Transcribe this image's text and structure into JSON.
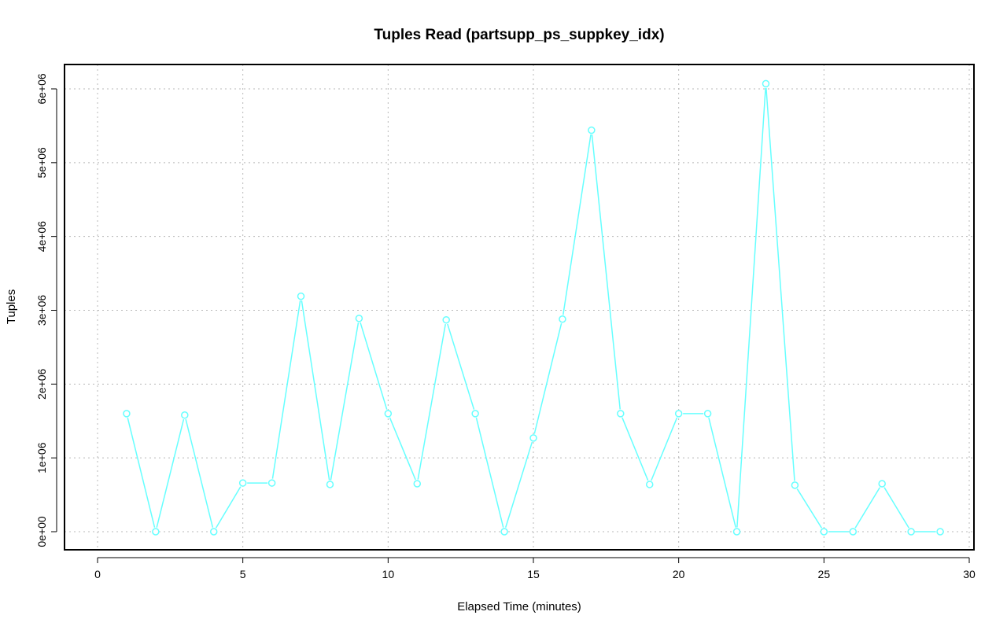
{
  "chart_data": {
    "type": "line",
    "title": "Tuples Read (partsupp_ps_suppkey_idx)",
    "xlabel": "Elapsed Time (minutes)",
    "ylabel": "Tuples",
    "xlim": [
      0,
      30
    ],
    "ylim": [
      0,
      6000000
    ],
    "x_ticks": [
      0,
      5,
      10,
      15,
      20,
      25,
      30
    ],
    "x_tick_labels": [
      "0",
      "5",
      "10",
      "15",
      "20",
      "25",
      "30"
    ],
    "y_ticks": [
      0,
      1000000,
      2000000,
      3000000,
      4000000,
      5000000,
      6000000
    ],
    "y_tick_labels": [
      "0e+00",
      "1e+06",
      "2e+06",
      "3e+06",
      "4e+06",
      "5e+06",
      "6e+06"
    ],
    "grid": true,
    "color": "#66ffff",
    "x": [
      1,
      2,
      3,
      4,
      5,
      6,
      7,
      8,
      9,
      10,
      11,
      12,
      13,
      14,
      15,
      16,
      17,
      18,
      19,
      20,
      21,
      22,
      23,
      24,
      25,
      26,
      27,
      28,
      29
    ],
    "values": [
      1600000,
      0,
      1580000,
      0,
      660000,
      660000,
      3190000,
      640000,
      2890000,
      1600000,
      650000,
      2870000,
      1600000,
      0,
      1270000,
      2880000,
      5440000,
      1600000,
      640000,
      1600000,
      1600000,
      0,
      6070000,
      630000,
      0,
      0,
      650000,
      0,
      0
    ]
  }
}
